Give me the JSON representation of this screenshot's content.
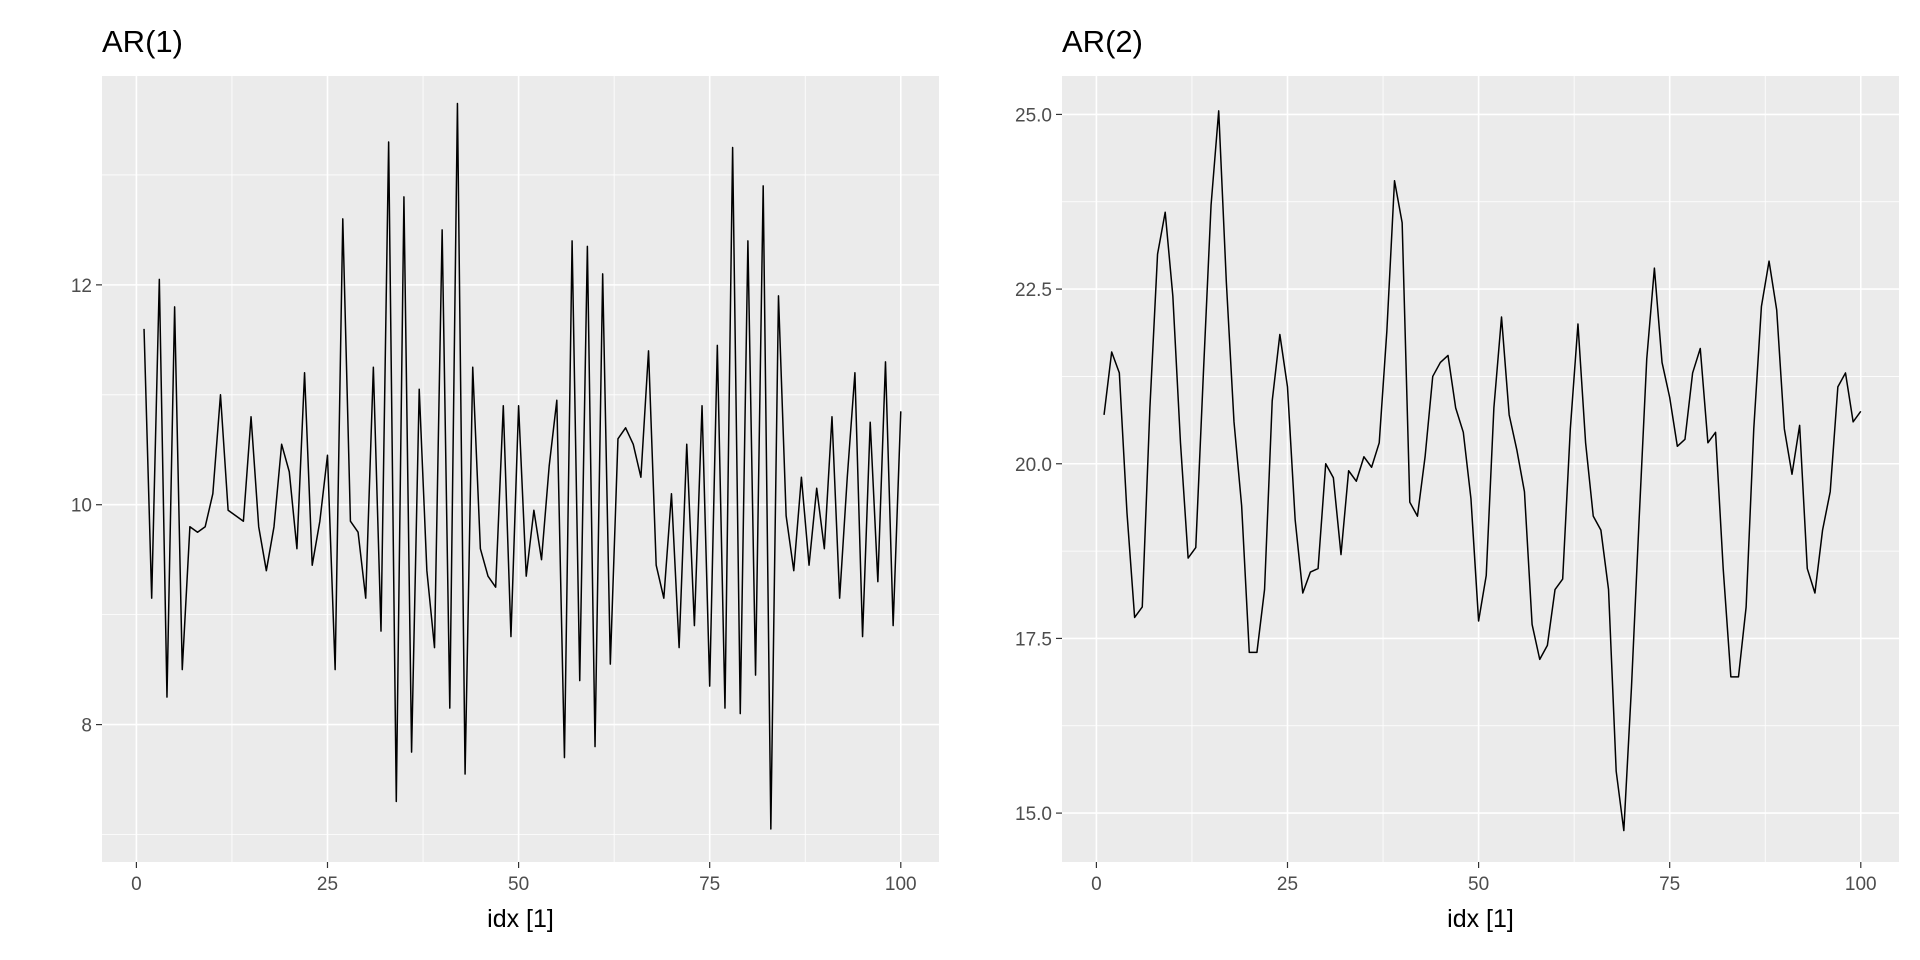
{
  "chart_data": [
    {
      "type": "line",
      "title": "AR(1)",
      "xlabel": "idx [1]",
      "ylabel": "",
      "xlim": [
        -4.5,
        105
      ],
      "ylim": [
        6.75,
        13.9
      ],
      "x_ticks": [
        0,
        25,
        50,
        75,
        100
      ],
      "x_tick_labels": [
        "0",
        "25",
        "50",
        "75",
        "100"
      ],
      "y_ticks": [
        8,
        10,
        12
      ],
      "y_tick_labels": [
        "8",
        "10",
        "12"
      ],
      "grid": true,
      "background": "#ebebeb",
      "line_color": "#000000",
      "series": [
        {
          "x": [
            1,
            2,
            3,
            4,
            5,
            6,
            7,
            8,
            9,
            10,
            11,
            12,
            13,
            14,
            15,
            16,
            17,
            18,
            19,
            20,
            21,
            22,
            23,
            24,
            25,
            26,
            27,
            28,
            29,
            30,
            31,
            32,
            33,
            34,
            35,
            36,
            37,
            38,
            39,
            40,
            41,
            42,
            43,
            44,
            45,
            46,
            47,
            48,
            49,
            50,
            51,
            52,
            53,
            54,
            55,
            56,
            57,
            58,
            59,
            60,
            61,
            62,
            63,
            64,
            65,
            66,
            67,
            68,
            69,
            70,
            71,
            72,
            73,
            74,
            75,
            76,
            77,
            78,
            79,
            80,
            81,
            82,
            83,
            84,
            85,
            86,
            87,
            88,
            89,
            90,
            91,
            92,
            93,
            94,
            95,
            96,
            97,
            98,
            99,
            100
          ],
          "values": [
            11.6,
            9.15,
            12.05,
            8.25,
            11.8,
            8.5,
            9.8,
            9.75,
            9.8,
            10.1,
            11.0,
            9.95,
            9.9,
            9.85,
            10.8,
            9.8,
            9.4,
            9.8,
            10.55,
            10.3,
            9.6,
            11.2,
            9.45,
            9.85,
            10.45,
            8.5,
            12.6,
            9.85,
            9.75,
            9.15,
            11.25,
            8.85,
            13.3,
            7.3,
            12.8,
            7.75,
            11.05,
            9.4,
            8.7,
            12.5,
            8.15,
            13.65,
            7.55,
            11.25,
            9.6,
            9.35,
            9.25,
            10.9,
            8.8,
            10.9,
            9.35,
            9.95,
            9.5,
            10.35,
            10.95,
            7.7,
            12.4,
            8.4,
            12.35,
            7.8,
            12.1,
            8.55,
            10.6,
            10.7,
            10.55,
            10.25,
            11.4,
            9.45,
            9.15,
            10.1,
            8.7,
            10.55,
            8.9,
            10.9,
            8.35,
            11.45,
            8.15,
            13.25,
            8.1,
            12.4,
            8.45,
            12.9,
            7.05,
            11.9,
            9.9,
            9.4,
            10.25,
            9.45,
            10.15,
            9.6,
            10.8,
            9.15,
            10.25,
            11.2,
            8.8,
            10.75,
            9.3,
            11.3,
            8.9,
            10.85
          ]
        }
      ]
    },
    {
      "type": "line",
      "title": "AR(2)",
      "xlabel": "idx [1]",
      "ylabel": "",
      "xlim": [
        -4.5,
        105
      ],
      "ylim": [
        14.3,
        25.55
      ],
      "x_ticks": [
        0,
        25,
        50,
        75,
        100
      ],
      "x_tick_labels": [
        "0",
        "25",
        "50",
        "75",
        "100"
      ],
      "y_ticks": [
        15.0,
        17.5,
        20.0,
        22.5,
        25.0
      ],
      "y_tick_labels": [
        "15.0",
        "17.5",
        "20.0",
        "22.5",
        "25.0"
      ],
      "grid": true,
      "background": "#ebebeb",
      "line_color": "#000000",
      "series": [
        {
          "x": [
            1,
            2,
            3,
            4,
            5,
            6,
            7,
            8,
            9,
            10,
            11,
            12,
            13,
            14,
            15,
            16,
            17,
            18,
            19,
            20,
            21,
            22,
            23,
            24,
            25,
            26,
            27,
            28,
            29,
            30,
            31,
            32,
            33,
            34,
            35,
            36,
            37,
            38,
            39,
            40,
            41,
            42,
            43,
            44,
            45,
            46,
            47,
            48,
            49,
            50,
            51,
            52,
            53,
            54,
            55,
            56,
            57,
            58,
            59,
            60,
            61,
            62,
            63,
            64,
            65,
            66,
            67,
            68,
            69,
            70,
            71,
            72,
            73,
            74,
            75,
            76,
            77,
            78,
            79,
            80,
            81,
            82,
            83,
            84,
            85,
            86,
            87,
            88,
            89,
            90,
            91,
            92,
            93,
            94,
            95,
            96,
            97,
            98,
            99,
            100
          ],
          "values": [
            20.7,
            21.6,
            21.3,
            19.3,
            17.8,
            17.95,
            20.8,
            23.0,
            23.6,
            22.4,
            20.3,
            18.65,
            18.8,
            21.3,
            23.7,
            25.05,
            22.6,
            20.6,
            19.4,
            17.3,
            17.3,
            18.2,
            20.9,
            21.85,
            21.1,
            19.2,
            18.15,
            18.45,
            18.5,
            20.0,
            19.8,
            18.7,
            19.9,
            19.75,
            20.1,
            19.95,
            20.3,
            21.9,
            24.05,
            23.45,
            19.45,
            19.25,
            20.1,
            21.25,
            21.45,
            21.55,
            20.8,
            20.45,
            19.5,
            17.75,
            18.4,
            20.8,
            22.1,
            20.7,
            20.2,
            19.6,
            17.7,
            17.2,
            17.4,
            18.2,
            18.35,
            20.5,
            22.0,
            20.3,
            19.25,
            19.05,
            18.2,
            15.6,
            14.75,
            16.8,
            19.2,
            21.5,
            22.8,
            21.45,
            20.95,
            20.25,
            20.35,
            21.3,
            21.65,
            20.3,
            20.45,
            18.5,
            16.95,
            16.95,
            17.95,
            20.5,
            22.25,
            22.9,
            22.2,
            20.5,
            19.85,
            20.55,
            18.5,
            18.15,
            19.05,
            19.6,
            21.1,
            21.3,
            20.6,
            20.75
          ]
        }
      ]
    }
  ]
}
